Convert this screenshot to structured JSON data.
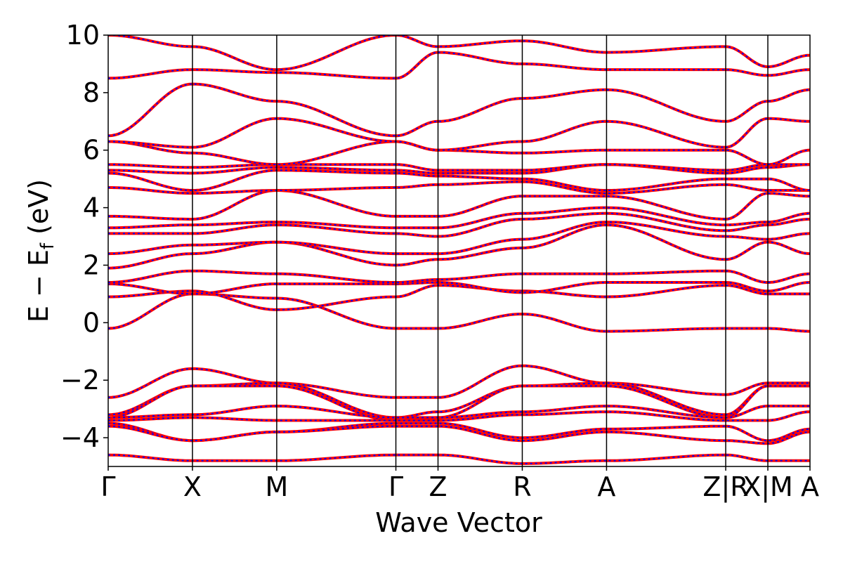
{
  "chart_data": {
    "type": "line",
    "title": "",
    "xlabel": "Wave Vector",
    "ylabel_main": "E − E",
    "ylabel_sub": "f",
    "ylabel_unit": "(eV)",
    "ylim": [
      -5,
      10
    ],
    "yticks": [
      -4,
      -2,
      0,
      2,
      4,
      6,
      8,
      10
    ],
    "ytick_labels": [
      "−4",
      "−2",
      "0",
      "2",
      "4",
      "6",
      "8",
      "10"
    ],
    "grid": false,
    "legend": "none",
    "high_symmetry_points": [
      {
        "label": "Γ",
        "x": 0.0
      },
      {
        "label": "X",
        "x": 0.5
      },
      {
        "label": "M",
        "x": 1.0
      },
      {
        "label": "Γ",
        "x": 1.707
      },
      {
        "label": "Z",
        "x": 1.957
      },
      {
        "label": "R",
        "x": 2.457
      },
      {
        "label": "A",
        "x": 2.957
      },
      {
        "label": "Z|R",
        "x": 3.664
      },
      {
        "label": "X|M",
        "x": 3.914
      },
      {
        "label": "A",
        "x": 4.164
      }
    ],
    "series_styles": [
      {
        "color": "#ff0000",
        "style": "solid"
      },
      {
        "color": "#0000ff",
        "style": "dotted"
      }
    ],
    "bands": [
      [
        -0.2,
        1.0,
        0.85,
        -0.2,
        -0.2,
        0.3,
        -0.3,
        -0.2,
        -0.2,
        -0.3
      ],
      [
        0.9,
        1.1,
        0.45,
        0.9,
        1.3,
        1.1,
        0.9,
        1.3,
        1.0,
        1.0
      ],
      [
        1.35,
        1.0,
        1.35,
        1.35,
        1.4,
        1.05,
        1.4,
        1.4,
        1.1,
        1.4
      ],
      [
        1.4,
        1.8,
        1.7,
        1.4,
        1.5,
        1.7,
        1.7,
        1.8,
        1.4,
        1.7
      ],
      [
        1.9,
        2.4,
        2.8,
        2.0,
        2.2,
        2.6,
        3.4,
        2.2,
        2.8,
        2.4
      ],
      [
        2.4,
        2.7,
        2.8,
        2.4,
        2.4,
        2.9,
        3.5,
        3.0,
        2.9,
        3.1
      ],
      [
        3.1,
        3.1,
        3.4,
        3.1,
        3.0,
        3.6,
        3.8,
        3.2,
        3.4,
        3.6
      ],
      [
        3.3,
        3.4,
        3.5,
        3.3,
        3.3,
        3.8,
        4.0,
        3.4,
        3.5,
        3.8
      ],
      [
        3.7,
        3.6,
        4.6,
        3.7,
        3.7,
        4.4,
        4.4,
        3.6,
        4.5,
        4.4
      ],
      [
        4.7,
        4.5,
        4.6,
        4.7,
        4.8,
        4.9,
        4.5,
        4.8,
        4.6,
        4.6
      ],
      [
        5.2,
        4.6,
        5.3,
        5.2,
        5.1,
        5.0,
        4.6,
        5.0,
        5.0,
        4.6
      ],
      [
        5.3,
        5.2,
        5.4,
        5.3,
        5.2,
        5.2,
        5.5,
        5.2,
        5.4,
        5.5
      ],
      [
        5.5,
        5.4,
        5.5,
        5.5,
        5.3,
        5.3,
        5.5,
        5.3,
        5.5,
        5.5
      ],
      [
        6.3,
        5.9,
        5.5,
        6.3,
        6.0,
        5.9,
        6.0,
        6.0,
        5.5,
        6.0
      ],
      [
        6.3,
        6.1,
        7.1,
        6.3,
        6.0,
        6.3,
        7.0,
        6.1,
        7.1,
        7.0
      ],
      [
        6.5,
        8.3,
        7.7,
        6.5,
        7.0,
        7.8,
        8.1,
        7.0,
        7.7,
        8.1
      ],
      [
        8.5,
        8.8,
        8.7,
        8.5,
        9.4,
        9.0,
        8.8,
        8.8,
        8.6,
        8.8
      ],
      [
        10.0,
        9.6,
        8.8,
        10.0,
        9.6,
        9.8,
        9.4,
        9.6,
        8.9,
        9.3
      ],
      [
        -2.6,
        -1.6,
        -2.1,
        -2.6,
        -2.6,
        -1.5,
        -2.1,
        -2.5,
        -2.1,
        -2.1
      ],
      [
        -3.2,
        -2.2,
        -2.1,
        -3.3,
        -3.1,
        -2.2,
        -2.1,
        -3.2,
        -2.2,
        -2.2
      ],
      [
        -3.3,
        -2.2,
        -2.2,
        -3.4,
        -3.3,
        -2.2,
        -2.2,
        -3.3,
        -2.2,
        -2.2
      ],
      [
        -3.3,
        -3.2,
        -2.9,
        -3.3,
        -3.3,
        -3.1,
        -2.9,
        -3.3,
        -2.9,
        -2.9
      ],
      [
        -3.4,
        -3.3,
        -3.4,
        -3.4,
        -3.4,
        -3.2,
        -3.1,
        -3.4,
        -3.4,
        -3.1
      ],
      [
        -3.5,
        -4.1,
        -3.8,
        -3.5,
        -3.5,
        -4.0,
        -3.7,
        -3.6,
        -4.1,
        -3.7
      ],
      [
        -3.6,
        -4.1,
        -3.8,
        -3.6,
        -3.6,
        -4.1,
        -3.8,
        -4.1,
        -4.2,
        -3.8
      ],
      [
        -4.6,
        -4.8,
        -4.8,
        -4.6,
        -4.6,
        -4.9,
        -4.8,
        -4.6,
        -4.8,
        -4.8
      ]
    ]
  }
}
